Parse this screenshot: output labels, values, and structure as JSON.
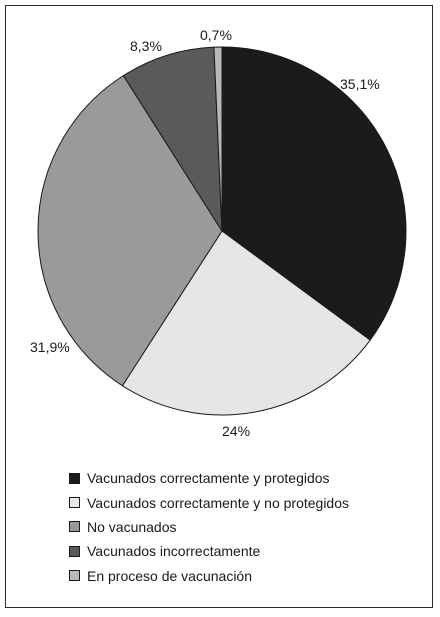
{
  "chart_data": {
    "type": "pie",
    "title": "",
    "categories": [
      "Vacunados correctamente y protegidos",
      "Vacunados correctamente y no protegidos",
      "No vacunados",
      "Vacunados incorrectamente",
      "En proceso de vacunación"
    ],
    "values": [
      35.1,
      24,
      31.9,
      8.3,
      0.7
    ],
    "labels": [
      "35,1%",
      "24%",
      "31,9%",
      "8,3%",
      "0,7%"
    ],
    "colors": [
      "#1b1b1b",
      "#e6e6e6",
      "#9a9a9a",
      "#5a5a5a",
      "#b8b8b8"
    ],
    "start_angle": "12 o'clock, clockwise",
    "legend_position": "bottom"
  }
}
